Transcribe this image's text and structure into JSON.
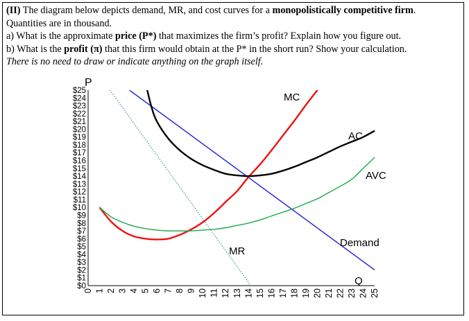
{
  "question": {
    "heading_label": "(II)",
    "heading_text": " The diagram below depicts demand, MR, and cost curves for a ",
    "heading_bold": "monopolistically competitive firm",
    "heading_end": ".",
    "quantities_note": "Quantities are in thousand.",
    "part_a_pre": "a) What is the approximate ",
    "part_a_bold": "price (P*)",
    "part_a_post": " that maximizes the firm’s profit? Explain how you figure out.",
    "part_b_pre": "b) What is the ",
    "part_b_bold": "profit (π)",
    "part_b_post": " that this firm would obtain at the P* in the short run? Show your calculation.",
    "note": "There is no need to draw or indicate anything on the graph itself."
  },
  "chart_data": {
    "type": "line",
    "xlabel": "Q",
    "ylabel": "P",
    "xlim": [
      0,
      25
    ],
    "ylim": [
      0,
      25
    ],
    "grid": false,
    "x_ticks": [
      "0",
      "1",
      "2",
      "3",
      "4",
      "5",
      "6",
      "7",
      "8",
      "9",
      "10",
      "11",
      "12",
      "13",
      "14",
      "15",
      "16",
      "17",
      "18",
      "19",
      "20",
      "21",
      "22",
      "23",
      "24",
      "25"
    ],
    "y_ticks": [
      "$0",
      "$1",
      "$2",
      "$3",
      "$4",
      "$5",
      "$6",
      "$7",
      "$8",
      "$9",
      "$10",
      "$11",
      "$12",
      "$13",
      "$14",
      "$15",
      "$16",
      "$17",
      "$18",
      "$19",
      "$20",
      "$21",
      "$22",
      "$23",
      "$24",
      "$25"
    ],
    "series": [
      {
        "name": "Demand",
        "color": "#1f1fe0",
        "style": "solid",
        "x": [
          3.6,
          25
        ],
        "y": [
          25,
          2
        ]
      },
      {
        "name": "MR",
        "color": "#2a8f8f",
        "style": "dotted",
        "x": [
          1.9,
          14.2
        ],
        "y": [
          25,
          0
        ]
      },
      {
        "name": "MC",
        "color": "#ee1111",
        "style": "solid",
        "x": [
          1,
          2,
          3,
          4,
          5,
          6,
          7,
          8,
          9,
          10,
          11,
          12,
          13,
          14,
          15,
          16,
          17,
          18,
          19,
          20,
          20.8
        ],
        "y": [
          10,
          8.2,
          7,
          6.3,
          6,
          5.9,
          6,
          6.5,
          7.2,
          8.1,
          9.3,
          10.7,
          12.1,
          13.9,
          15.5,
          17.3,
          19.2,
          21.1,
          23.1,
          25,
          26.5
        ]
      },
      {
        "name": "AC",
        "color": "#000000",
        "style": "solid",
        "x": [
          5,
          5.5,
          6,
          7,
          8,
          9,
          10,
          11,
          12,
          13,
          14,
          15,
          16,
          17,
          18,
          19,
          20,
          21,
          22,
          23,
          24,
          25
        ],
        "y": [
          26,
          23,
          21,
          18.8,
          17.3,
          16.2,
          15.4,
          14.8,
          14.3,
          14.1,
          14,
          14.1,
          14.3,
          14.7,
          15.2,
          15.8,
          16.4,
          17.1,
          17.8,
          18.4,
          19,
          19.8
        ]
      },
      {
        "name": "AVC",
        "color": "#1aa84a",
        "style": "solid",
        "x": [
          1,
          2,
          3,
          4,
          5,
          6,
          7,
          8,
          9,
          10,
          11,
          12,
          13,
          14,
          15,
          16,
          17,
          18,
          19,
          20,
          21,
          22,
          23,
          24,
          25
        ],
        "y": [
          10,
          8.8,
          8.1,
          7.6,
          7.3,
          7.1,
          7.0,
          7.0,
          7.0,
          7.1,
          7.2,
          7.4,
          7.7,
          8.0,
          8.4,
          8.9,
          9.4,
          9.9,
          10.5,
          11.1,
          11.9,
          12.7,
          13.6,
          15,
          16.4
        ]
      }
    ],
    "labels": {
      "mc": "MC",
      "ac": "AC",
      "avc": "AVC",
      "demand": "Demand",
      "mr": "MR"
    }
  }
}
